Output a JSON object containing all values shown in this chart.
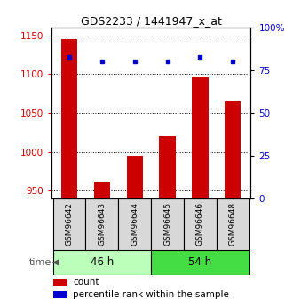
{
  "title": "GDS2233 / 1441947_x_at",
  "samples": [
    "GSM96642",
    "GSM96643",
    "GSM96644",
    "GSM96645",
    "GSM96646",
    "GSM96648"
  ],
  "counts": [
    1145,
    962,
    995,
    1020,
    1097,
    1065
  ],
  "percentiles": [
    83,
    80,
    80,
    80,
    83,
    80
  ],
  "groups": [
    {
      "label": "46 h",
      "indices": [
        0,
        1,
        2
      ],
      "color_light": "#ccffcc",
      "color_dark": "#66ee66"
    },
    {
      "label": "54 h",
      "indices": [
        3,
        4,
        5
      ],
      "color_light": "#66ee66",
      "color_dark": "#22cc22"
    }
  ],
  "ylim_left": [
    940,
    1160
  ],
  "ylim_right": [
    0,
    100
  ],
  "yticks_left": [
    950,
    1000,
    1050,
    1100,
    1150
  ],
  "yticks_right": [
    0,
    25,
    50,
    75,
    100
  ],
  "bar_color": "#cc0000",
  "dot_color": "#0000cc",
  "background_color": "#ffffff",
  "tick_label_color_left": "#cc0000",
  "tick_label_color_right": "#0000cc",
  "grid_linestyle": "dotted",
  "bar_width": 0.5,
  "figsize": [
    3.21,
    3.45
  ],
  "dpi": 100,
  "group1_color": "#bbffbb",
  "group2_color": "#44dd44"
}
